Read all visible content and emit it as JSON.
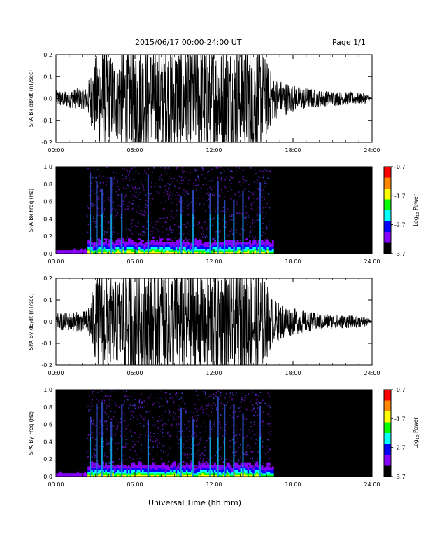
{
  "header": {
    "date_range": "2015/06/17  00:00-24:00 UT",
    "page": "Page 1/1"
  },
  "xaxis": {
    "label": "Universal Time (hh:mm)",
    "ticks": [
      "00:00",
      "06:00",
      "12:00",
      "18:00",
      "24:00"
    ]
  },
  "colorbar": {
    "label": "Log10 Power",
    "label_main": "Log",
    "label_sub": "10",
    "label_rest": " Power",
    "ticks": [
      "-0.7",
      "-1.7",
      "-2.7",
      "-3.7"
    ],
    "colors": [
      "#ff0000",
      "#ff8800",
      "#ffff00",
      "#00ff00",
      "#00ffff",
      "#0000ff",
      "#8800ff",
      "#000000"
    ]
  },
  "chart_data": [
    {
      "type": "line",
      "ylabel": "SPA Bx dB/dt (nT/sec)",
      "ylim": [
        -0.2,
        0.2
      ],
      "yticks": [
        "0.2",
        "0.1",
        "0.0",
        "-0.1",
        "-0.2"
      ],
      "xlim": [
        "00:00",
        "24:00"
      ],
      "series": [
        {
          "time_hours": [
            0,
            2.3,
            3.3,
            4.5,
            5.3,
            6.9,
            9.2,
            12.0,
            15.5,
            16.5,
            18.0,
            20.0,
            23.5,
            24.0
          ],
          "envelope_amplitude": [
            0.03,
            0.04,
            0.2,
            0.15,
            0.2,
            0.2,
            0.2,
            0.2,
            0.2,
            0.08,
            0.05,
            0.03,
            0.02,
            0.0
          ]
        }
      ]
    },
    {
      "type": "heatmap",
      "ylabel": "SPA Bx Freq (Hz)",
      "ylim": [
        0.0,
        1.0
      ],
      "yticks": [
        "1.0",
        "0.8",
        "0.6",
        "0.4",
        "0.2",
        "0.0"
      ],
      "xlim": [
        "00:00",
        "24:00"
      ],
      "color_range": [
        -3.7,
        -0.7
      ],
      "bright_bands_hours": [
        2.6,
        3.1,
        3.5,
        4.2,
        5.0,
        7.0,
        9.5,
        10.4,
        11.7,
        12.3,
        12.8,
        13.5,
        14.2,
        15.5
      ]
    },
    {
      "type": "line",
      "ylabel": "SPA By dB/dt (nT/sec)",
      "ylim": [
        -0.2,
        0.2
      ],
      "yticks": [
        "0.2",
        "0.1",
        "0.0",
        "-0.1",
        "-0.2"
      ],
      "xlim": [
        "00:00",
        "24:00"
      ],
      "series": [
        {
          "time_hours": [
            0,
            2.3,
            3.3,
            4.5,
            5.3,
            6.9,
            9.2,
            12.0,
            15.5,
            16.5,
            18.0,
            20.0,
            23.5,
            24.0
          ],
          "envelope_amplitude": [
            0.03,
            0.04,
            0.2,
            0.15,
            0.2,
            0.2,
            0.2,
            0.2,
            0.2,
            0.08,
            0.05,
            0.03,
            0.02,
            0.0
          ]
        }
      ]
    },
    {
      "type": "heatmap",
      "ylabel": "SPA By Freq (Hz)",
      "ylim": [
        0.0,
        1.0
      ],
      "yticks": [
        "1.0",
        "0.8",
        "0.6",
        "0.4",
        "0.2",
        "0.0"
      ],
      "xlim": [
        "00:00",
        "24:00"
      ],
      "color_range": [
        -3.7,
        -0.7
      ],
      "bright_bands_hours": [
        2.6,
        3.1,
        3.5,
        4.2,
        5.0,
        7.0,
        9.5,
        10.4,
        11.7,
        12.3,
        12.8,
        13.5,
        14.2,
        15.5
      ]
    }
  ]
}
